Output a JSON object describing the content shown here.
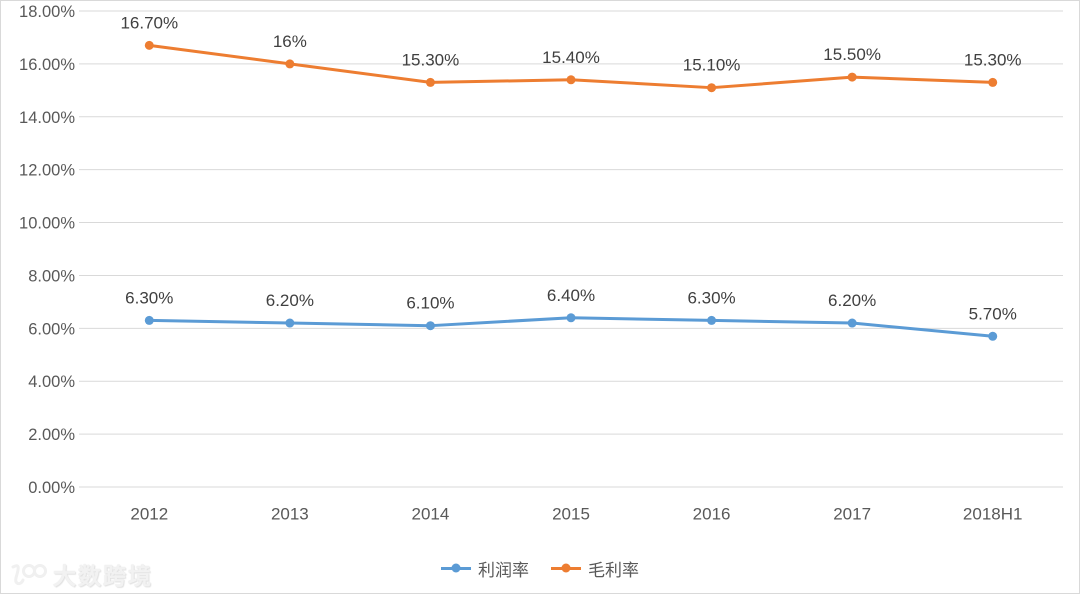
{
  "chart_data": {
    "type": "line",
    "title": "",
    "categories": [
      "2012",
      "2013",
      "2014",
      "2015",
      "2016",
      "2017",
      "2018H1"
    ],
    "series": [
      {
        "name": "利润率",
        "color": "#5B9BD5",
        "values": [
          6.3,
          6.2,
          6.1,
          6.4,
          6.3,
          6.2,
          5.7
        ],
        "labels": [
          "6.30%",
          "6.20%",
          "6.10%",
          "6.40%",
          "6.30%",
          "6.20%",
          "5.70%"
        ]
      },
      {
        "name": "毛利率",
        "color": "#ED7D31",
        "values": [
          16.7,
          16.0,
          15.3,
          15.4,
          15.1,
          15.5,
          15.3
        ],
        "labels": [
          "16.70%",
          "16%",
          "15.30%",
          "15.40%",
          "15.10%",
          "15.50%",
          "15.30%"
        ]
      }
    ],
    "yticks": [
      0,
      2,
      4,
      6,
      8,
      10,
      12,
      14,
      16,
      18
    ],
    "ytick_labels": [
      "0.00%",
      "2.00%",
      "4.00%",
      "6.00%",
      "8.00%",
      "10.00%",
      "12.00%",
      "14.00%",
      "16.00%",
      "18.00%"
    ],
    "ylim": [
      0,
      18
    ],
    "grid": true,
    "legend_position": "bottom"
  },
  "colors": {
    "grid": "#D9D9D9",
    "axis_text": "#595959",
    "data_label": "#404040",
    "background": "#FFFFFF",
    "border": "#D9D9D9"
  },
  "watermark": {
    "text": "大数跨境"
  }
}
